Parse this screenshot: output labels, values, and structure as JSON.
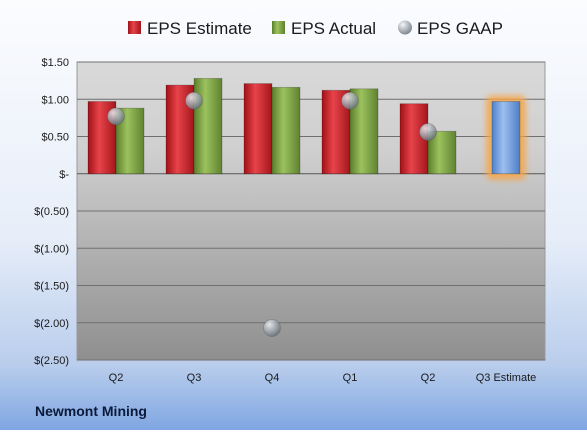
{
  "chart_data": {
    "type": "bar",
    "title": "",
    "xlabel": "",
    "ylabel": "",
    "categories": [
      "Q2",
      "Q3",
      "Q4",
      "Q1",
      "Q2",
      "Q3 Estimate"
    ],
    "y_tick_labels": [
      "$1.50",
      "$1.00",
      "$0.50",
      "$-",
      "$(0.50)",
      "$(1.00)",
      "$(1.50)",
      "$(2.00)",
      "$(2.50)"
    ],
    "y_ticks": [
      1.5,
      1.0,
      0.5,
      0.0,
      -0.5,
      -1.0,
      -1.5,
      -2.0,
      -2.5
    ],
    "ylim": [
      -2.5,
      1.5
    ],
    "grid": true,
    "legend_position": "top",
    "series": [
      {
        "name": "EPS Estimate",
        "type": "bar",
        "color": "#cc2229",
        "values": [
          0.97,
          1.19,
          1.21,
          1.12,
          0.94,
          null
        ]
      },
      {
        "name": "EPS Actual",
        "type": "bar",
        "color": "#7ca043",
        "values": [
          0.88,
          1.28,
          1.16,
          1.14,
          0.57,
          null
        ]
      },
      {
        "name": "EPS GAAP",
        "type": "scatter",
        "color": "#a9b0b8",
        "values": [
          0.77,
          0.98,
          -2.07,
          0.98,
          0.56,
          null
        ]
      },
      {
        "name": "Q3 Estimate",
        "type": "bar",
        "color": "#6f9ee0",
        "highlight": "#f6a64a",
        "values": [
          null,
          null,
          null,
          null,
          null,
          0.97
        ]
      }
    ],
    "footer_label": "Newmont Mining"
  }
}
